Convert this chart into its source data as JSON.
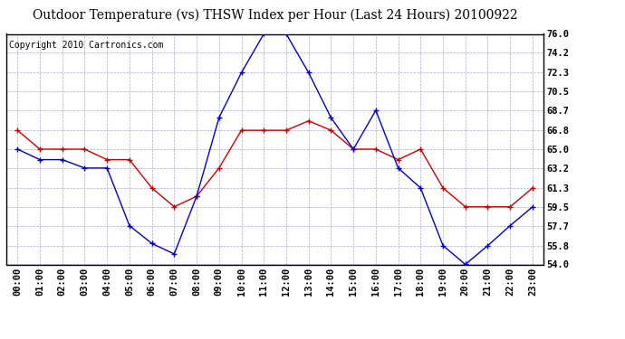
{
  "title": "Outdoor Temperature (vs) THSW Index per Hour (Last 24 Hours) 20100922",
  "copyright": "Copyright 2010 Cartronics.com",
  "hours": [
    "00:00",
    "01:00",
    "02:00",
    "03:00",
    "04:00",
    "05:00",
    "06:00",
    "07:00",
    "08:00",
    "09:00",
    "10:00",
    "11:00",
    "12:00",
    "13:00",
    "14:00",
    "15:00",
    "16:00",
    "17:00",
    "18:00",
    "19:00",
    "20:00",
    "21:00",
    "22:00",
    "23:00"
  ],
  "temp_red": [
    66.8,
    65.0,
    65.0,
    65.0,
    64.0,
    64.0,
    61.3,
    59.5,
    60.5,
    63.2,
    66.8,
    66.8,
    66.8,
    67.7,
    66.8,
    65.0,
    65.0,
    64.0,
    65.0,
    61.3,
    59.5,
    59.5,
    59.5,
    61.3
  ],
  "thsw_blue": [
    65.0,
    64.0,
    64.0,
    63.2,
    63.2,
    57.7,
    56.0,
    55.0,
    60.5,
    68.0,
    72.3,
    76.0,
    76.0,
    72.3,
    68.0,
    65.0,
    68.7,
    63.2,
    61.3,
    55.8,
    54.0,
    55.8,
    57.7,
    59.5
  ],
  "ylim_min": 54.0,
  "ylim_max": 76.0,
  "yticks": [
    54.0,
    55.8,
    57.7,
    59.5,
    61.3,
    63.2,
    65.0,
    66.8,
    68.7,
    70.5,
    72.3,
    74.2,
    76.0
  ],
  "bg_color": "#ffffff",
  "grid_color": "#aaaacc",
  "red_color": "#cc0000",
  "blue_color": "#0000cc",
  "title_fontsize": 10,
  "copyright_fontsize": 7,
  "tick_fontsize": 7.5
}
